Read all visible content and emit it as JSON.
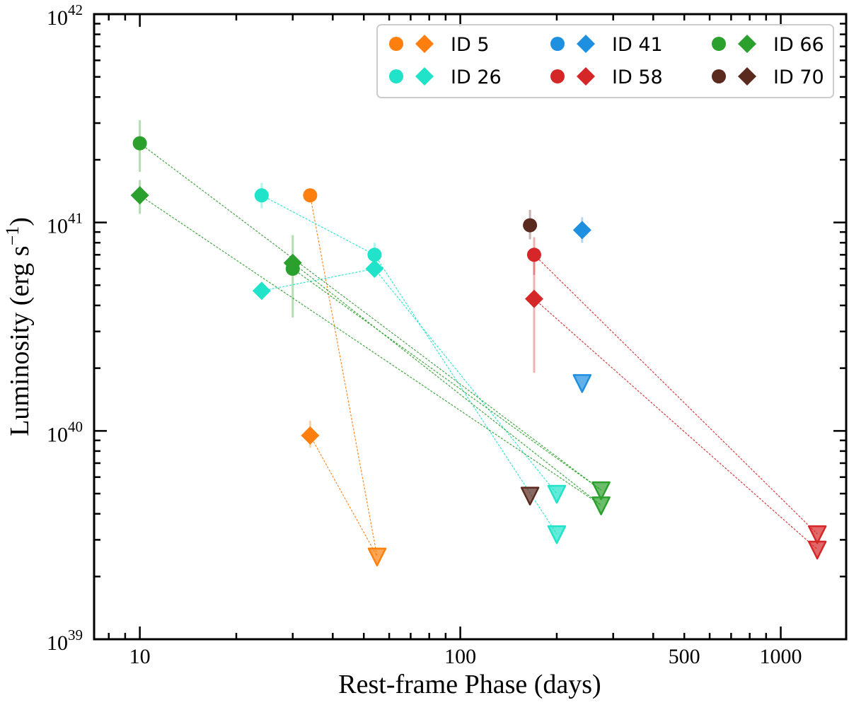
{
  "chart_data": {
    "type": "scatter",
    "xlabel": "Rest-frame Phase (days)",
    "ylabel": "Luminosity (erg s",
    "ylabel_sup": "−1",
    "ylabel_close": ")",
    "xscale": "log",
    "yscale": "log",
    "xlim": [
      7.2,
      1600
    ],
    "ylim": [
      1e+39,
      1e+42
    ],
    "x_ticks": [
      {
        "value": 10,
        "label": "10"
      },
      {
        "value": 100,
        "label": "100"
      },
      {
        "value": 500,
        "label": "500"
      },
      {
        "value": 1000,
        "label": "1000"
      }
    ],
    "y_ticks": [
      {
        "value": 1e+39,
        "base": "10",
        "exp": "39"
      },
      {
        "value": 1e+40,
        "base": "10",
        "exp": "40"
      },
      {
        "value": 1e+41,
        "base": "10",
        "exp": "41"
      },
      {
        "value": 1e+42,
        "base": "10",
        "exp": "42"
      }
    ],
    "grid": false,
    "legend_position": "top-right",
    "series": [
      {
        "name": "ID 5",
        "color": "#ff7f0e",
        "circle": [
          {
            "x": 34,
            "y": 1.35e+41,
            "ylo": 1.35e+41,
            "yhi": 1.35e+41
          }
        ],
        "diamond": [
          {
            "x": 34,
            "y": 9.5e+39,
            "ylo": 8.3e+39,
            "yhi": 1.12e+40
          }
        ],
        "upper_limits": [
          {
            "x": 55,
            "y": 2.5e+39
          }
        ]
      },
      {
        "name": "ID 26",
        "color": "#20e3c9",
        "circle": [
          {
            "x": 24,
            "y": 1.35e+41,
            "ylo": 1.17e+41,
            "yhi": 1.55e+41
          },
          {
            "x": 54,
            "y": 7e+40,
            "ylo": 6.1e+40,
            "yhi": 8e+40
          }
        ],
        "diamond": [
          {
            "x": 24,
            "y": 4.7e+40,
            "ylo": 4.7e+40,
            "yhi": 4.7e+40
          },
          {
            "x": 54,
            "y": 6e+40,
            "ylo": 6e+40,
            "yhi": 6e+40
          }
        ],
        "upper_limits": [
          {
            "x": 200,
            "y": 3.2e+39
          },
          {
            "x": 200,
            "y": 5e+39
          }
        ]
      },
      {
        "name": "ID 41",
        "color": "#1f8fe0",
        "circle": [],
        "diamond": [
          {
            "x": 240,
            "y": 9.2e+40,
            "ylo": 8e+40,
            "yhi": 1.06e+41
          }
        ],
        "upper_limits": [
          {
            "x": 240,
            "y": 1.7e+40
          }
        ]
      },
      {
        "name": "ID 58",
        "color": "#d62728",
        "circle": [
          {
            "x": 170,
            "y": 7e+40,
            "ylo": 5.6e+40,
            "yhi": 8.5e+40
          }
        ],
        "diamond": [
          {
            "x": 170,
            "y": 4.3e+40,
            "ylo": 1.9e+40,
            "yhi": 6.8e+40
          }
        ],
        "upper_limits": [
          {
            "x": 1300,
            "y": 2.7e+39
          },
          {
            "x": 1300,
            "y": 3.2e+39
          }
        ]
      },
      {
        "name": "ID 66",
        "color": "#2ca02c",
        "circle": [
          {
            "x": 10,
            "y": 2.4e+41,
            "ylo": 1.75e+41,
            "yhi": 3.1e+41
          },
          {
            "x": 30,
            "y": 6e+40,
            "ylo": 3.5e+40,
            "yhi": 8.7e+40
          }
        ],
        "diamond": [
          {
            "x": 10,
            "y": 1.35e+41,
            "ylo": 1.1e+41,
            "yhi": 1.6e+41
          },
          {
            "x": 30,
            "y": 6.4e+40,
            "ylo": 6.4e+40,
            "yhi": 6.4e+40
          }
        ],
        "upper_limits": [
          {
            "x": 275,
            "y": 4.4e+39
          },
          {
            "x": 275,
            "y": 5.2e+39
          }
        ]
      },
      {
        "name": "ID 70",
        "color": "#5a2a1f",
        "circle": [
          {
            "x": 165,
            "y": 9.7e+40,
            "ylo": 8.3e+40,
            "yhi": 1.15e+41
          }
        ],
        "diamond": [],
        "upper_limits": [
          {
            "x": 165,
            "y": 4.9e+39
          }
        ]
      }
    ],
    "connections": [
      {
        "series": "ID 5",
        "from": [
          34,
          1.35e+41
        ],
        "to": [
          55,
          2.5e+39
        ]
      },
      {
        "series": "ID 5",
        "from": [
          34,
          9.5e+39
        ],
        "to": [
          55,
          2.5e+39
        ]
      },
      {
        "series": "ID 26",
        "from": [
          24,
          1.35e+41
        ],
        "to": [
          54,
          7e+40
        ]
      },
      {
        "series": "ID 26",
        "from": [
          24,
          4.7e+40
        ],
        "to": [
          54,
          6e+40
        ]
      },
      {
        "series": "ID 26",
        "from": [
          54,
          7e+40
        ],
        "to": [
          200,
          3.2e+39
        ]
      },
      {
        "series": "ID 26",
        "from": [
          54,
          6e+40
        ],
        "to": [
          200,
          5e+39
        ]
      },
      {
        "series": "ID 58",
        "from": [
          170,
          7e+40
        ],
        "to": [
          1300,
          3.2e+39
        ]
      },
      {
        "series": "ID 58",
        "from": [
          170,
          4.3e+40
        ],
        "to": [
          1300,
          2.7e+39
        ]
      },
      {
        "series": "ID 66",
        "from": [
          10,
          2.4e+41
        ],
        "to": [
          275,
          5.2e+39
        ]
      },
      {
        "series": "ID 66",
        "from": [
          10,
          1.35e+41
        ],
        "to": [
          275,
          4.4e+39
        ]
      },
      {
        "series": "ID 66",
        "from": [
          30,
          6e+40
        ],
        "to": [
          275,
          5.2e+39
        ]
      },
      {
        "series": "ID 66",
        "from": [
          30,
          6.4e+40
        ],
        "to": [
          275,
          4.4e+39
        ]
      }
    ]
  }
}
